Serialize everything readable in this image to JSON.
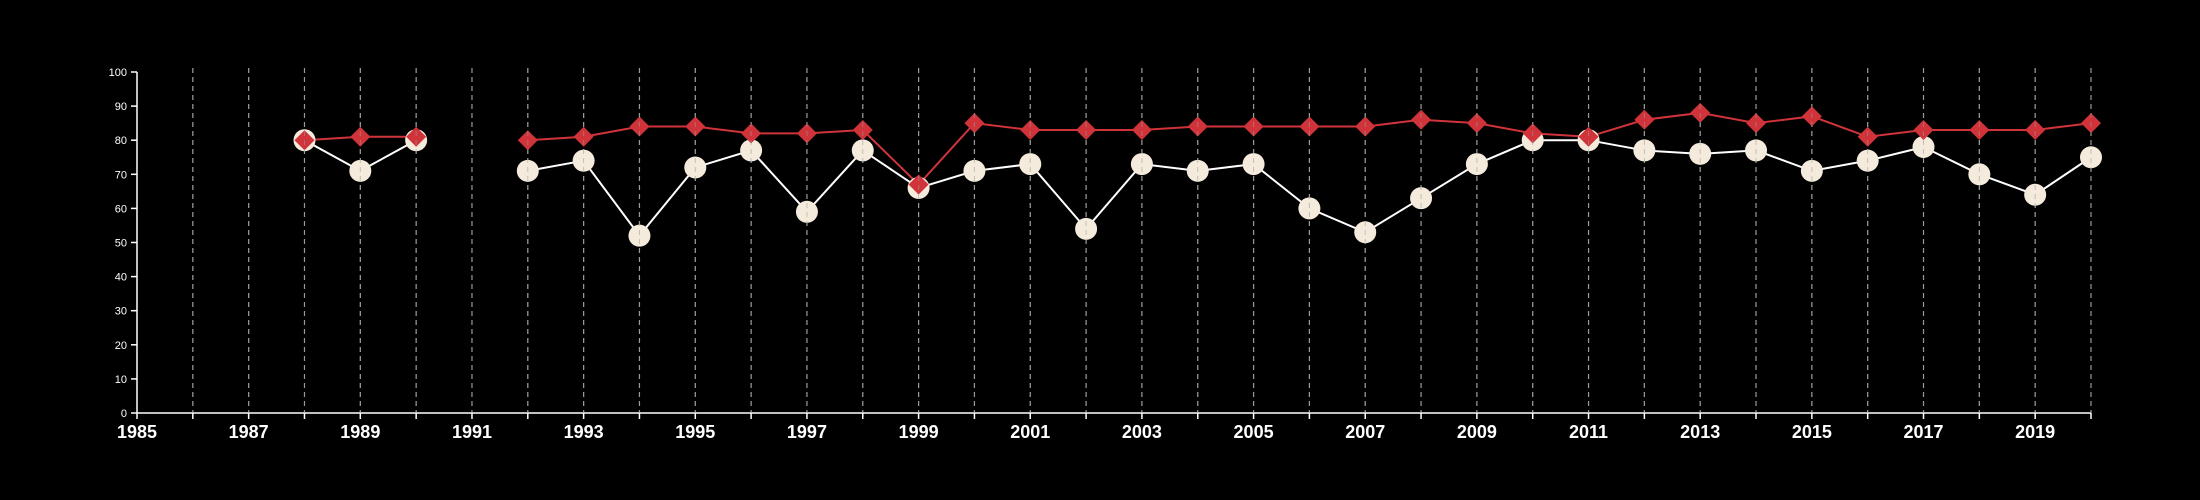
{
  "chart_data": {
    "type": "line",
    "title": "",
    "xlabel": "",
    "ylabel": "",
    "xlim": [
      1985,
      2020
    ],
    "ylim": [
      0,
      100
    ],
    "y_ticks": [
      0,
      10,
      20,
      30,
      40,
      50,
      60,
      70,
      80,
      90,
      100
    ],
    "x_tick_labels": [
      1985,
      1987,
      1989,
      1991,
      1993,
      1995,
      1997,
      1999,
      2001,
      2003,
      2005,
      2007,
      2009,
      2011,
      2013,
      2015,
      2017,
      2019
    ],
    "gridlines": "vertical dashed, every year",
    "x": [
      1985,
      1986,
      1987,
      1988,
      1989,
      1990,
      1991,
      1992,
      1993,
      1994,
      1995,
      1996,
      1997,
      1998,
      1999,
      2000,
      2001,
      2002,
      2003,
      2004,
      2005,
      2006,
      2007,
      2008,
      2009,
      2010,
      2011,
      2012,
      2013,
      2014,
      2015,
      2016,
      2017,
      2018,
      2019,
      2020
    ],
    "series": [
      {
        "marker": "circle",
        "color": "#f5ebdc",
        "line_color": "#ffffff",
        "values": [
          null,
          null,
          null,
          80,
          71,
          80,
          null,
          71,
          74,
          52,
          72,
          77,
          59,
          77,
          66,
          71,
          73,
          54,
          73,
          71,
          73,
          60,
          53,
          63,
          73,
          80,
          80,
          77,
          76,
          77,
          71,
          74,
          78,
          70,
          64,
          75
        ]
      },
      {
        "marker": "diamond",
        "color": "#d0343a",
        "line_color": "#d0343a",
        "values": [
          null,
          null,
          null,
          80,
          81,
          81,
          null,
          80,
          81,
          84,
          84,
          82,
          82,
          83,
          67,
          85,
          83,
          83,
          83,
          84,
          84,
          84,
          84,
          86,
          85,
          82,
          81,
          86,
          88,
          85,
          87,
          81,
          83,
          83,
          83,
          85
        ]
      }
    ]
  }
}
